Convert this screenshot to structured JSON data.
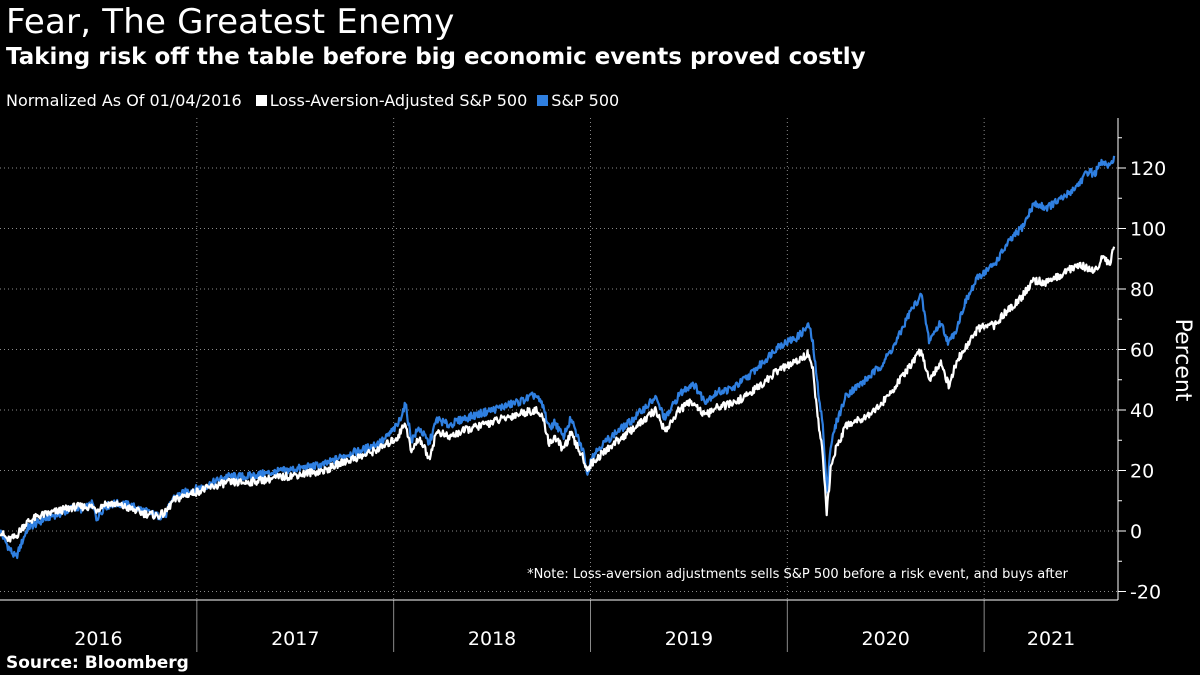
{
  "chart_data": {
    "type": "line",
    "title": "Fear, The Greatest Enemy",
    "subtitle": "Taking risk off the table before big economic events proved costly",
    "legend_note": "Normalized As Of 01/04/2016",
    "ylabel": "Percent",
    "xlabel": "",
    "ylim": [
      -20,
      135
    ],
    "xlim": [
      2016.0,
      2021.68
    ],
    "y_ticks": [
      "-20",
      "0",
      "20",
      "40",
      "60",
      "80",
      "100",
      "120"
    ],
    "x_labels": [
      "2016",
      "2017",
      "2018",
      "2019",
      "2020",
      "2021"
    ],
    "grid": true,
    "annotation": "*Note: Loss-aversion adjustments sells S&P 500 before a risk event, and buys after",
    "source": "Source:  Bloomberg",
    "series": [
      {
        "name": "S&P 500",
        "color": "#2f7fe0",
        "points": [
          [
            2016.0,
            0
          ],
          [
            2016.04,
            -5
          ],
          [
            2016.08,
            -9
          ],
          [
            2016.11,
            -4
          ],
          [
            2016.14,
            1
          ],
          [
            2016.2,
            3
          ],
          [
            2016.26,
            5
          ],
          [
            2016.32,
            6
          ],
          [
            2016.38,
            8
          ],
          [
            2016.42,
            7
          ],
          [
            2016.47,
            9
          ],
          [
            2016.49,
            4
          ],
          [
            2016.53,
            8
          ],
          [
            2016.58,
            9
          ],
          [
            2016.63,
            9
          ],
          [
            2016.68,
            8
          ],
          [
            2016.72,
            7
          ],
          [
            2016.8,
            5
          ],
          [
            2016.84,
            5
          ],
          [
            2016.88,
            11
          ],
          [
            2016.95,
            13
          ],
          [
            2017.05,
            15
          ],
          [
            2017.15,
            18
          ],
          [
            2017.25,
            18
          ],
          [
            2017.35,
            19
          ],
          [
            2017.45,
            20
          ],
          [
            2017.55,
            21
          ],
          [
            2017.65,
            22
          ],
          [
            2017.75,
            25
          ],
          [
            2017.85,
            27
          ],
          [
            2017.95,
            30
          ],
          [
            2018.02,
            35
          ],
          [
            2018.06,
            42
          ],
          [
            2018.09,
            30
          ],
          [
            2018.13,
            34
          ],
          [
            2018.18,
            29
          ],
          [
            2018.22,
            37
          ],
          [
            2018.28,
            35
          ],
          [
            2018.35,
            37
          ],
          [
            2018.45,
            39
          ],
          [
            2018.55,
            41
          ],
          [
            2018.65,
            43
          ],
          [
            2018.72,
            45
          ],
          [
            2018.76,
            41
          ],
          [
            2018.79,
            34
          ],
          [
            2018.82,
            36
          ],
          [
            2018.86,
            31
          ],
          [
            2018.9,
            37
          ],
          [
            2018.94,
            30
          ],
          [
            2018.97,
            25
          ],
          [
            2018.985,
            18
          ],
          [
            2019.0,
            24
          ],
          [
            2019.05,
            28
          ],
          [
            2019.12,
            32
          ],
          [
            2019.2,
            36
          ],
          [
            2019.28,
            41
          ],
          [
            2019.33,
            44
          ],
          [
            2019.38,
            37
          ],
          [
            2019.45,
            45
          ],
          [
            2019.52,
            49
          ],
          [
            2019.58,
            43
          ],
          [
            2019.65,
            46
          ],
          [
            2019.72,
            47
          ],
          [
            2019.8,
            51
          ],
          [
            2019.88,
            56
          ],
          [
            2019.95,
            61
          ],
          [
            2020.05,
            64
          ],
          [
            2020.11,
            68
          ],
          [
            2020.13,
            62
          ],
          [
            2020.15,
            50
          ],
          [
            2020.18,
            35
          ],
          [
            2020.2,
            13
          ],
          [
            2020.22,
            28
          ],
          [
            2020.25,
            36
          ],
          [
            2020.3,
            45
          ],
          [
            2020.4,
            50
          ],
          [
            2020.48,
            55
          ],
          [
            2020.55,
            62
          ],
          [
            2020.62,
            72
          ],
          [
            2020.68,
            78
          ],
          [
            2020.72,
            63
          ],
          [
            2020.78,
            69
          ],
          [
            2020.82,
            62
          ],
          [
            2020.86,
            67
          ],
          [
            2020.9,
            75
          ],
          [
            2020.97,
            84
          ],
          [
            2021.05,
            88
          ],
          [
            2021.12,
            95
          ],
          [
            2021.2,
            101
          ],
          [
            2021.25,
            108
          ],
          [
            2021.32,
            107
          ],
          [
            2021.4,
            110
          ],
          [
            2021.47,
            114
          ],
          [
            2021.53,
            119
          ],
          [
            2021.56,
            118
          ],
          [
            2021.6,
            122
          ],
          [
            2021.64,
            120
          ],
          [
            2021.66,
            124
          ]
        ]
      },
      {
        "name": "Loss-Aversion-Adjusted S&P 500",
        "color": "#ffffff",
        "points": [
          [
            2016.0,
            0
          ],
          [
            2016.04,
            -3
          ],
          [
            2016.08,
            -2
          ],
          [
            2016.11,
            1
          ],
          [
            2016.14,
            3
          ],
          [
            2016.2,
            5
          ],
          [
            2016.26,
            6
          ],
          [
            2016.32,
            7
          ],
          [
            2016.38,
            8
          ],
          [
            2016.42,
            8
          ],
          [
            2016.47,
            8
          ],
          [
            2016.49,
            7
          ],
          [
            2016.53,
            9
          ],
          [
            2016.58,
            9
          ],
          [
            2016.63,
            8
          ],
          [
            2016.68,
            7
          ],
          [
            2016.72,
            6
          ],
          [
            2016.8,
            5
          ],
          [
            2016.84,
            6
          ],
          [
            2016.88,
            10
          ],
          [
            2016.95,
            12
          ],
          [
            2017.05,
            14
          ],
          [
            2017.15,
            16
          ],
          [
            2017.25,
            16
          ],
          [
            2017.35,
            17
          ],
          [
            2017.45,
            18
          ],
          [
            2017.55,
            19
          ],
          [
            2017.65,
            20
          ],
          [
            2017.75,
            23
          ],
          [
            2017.85,
            25
          ],
          [
            2017.95,
            28
          ],
          [
            2018.02,
            31
          ],
          [
            2018.06,
            36
          ],
          [
            2018.09,
            26
          ],
          [
            2018.13,
            31
          ],
          [
            2018.18,
            24
          ],
          [
            2018.22,
            33
          ],
          [
            2018.28,
            31
          ],
          [
            2018.35,
            33
          ],
          [
            2018.45,
            35
          ],
          [
            2018.55,
            37
          ],
          [
            2018.65,
            39
          ],
          [
            2018.72,
            40
          ],
          [
            2018.76,
            37
          ],
          [
            2018.79,
            29
          ],
          [
            2018.82,
            31
          ],
          [
            2018.86,
            27
          ],
          [
            2018.9,
            32
          ],
          [
            2018.94,
            27
          ],
          [
            2018.97,
            23
          ],
          [
            2018.985,
            20
          ],
          [
            2019.0,
            22
          ],
          [
            2019.05,
            25
          ],
          [
            2019.12,
            29
          ],
          [
            2019.2,
            33
          ],
          [
            2019.28,
            37
          ],
          [
            2019.33,
            40
          ],
          [
            2019.38,
            33
          ],
          [
            2019.45,
            40
          ],
          [
            2019.52,
            43
          ],
          [
            2019.58,
            38
          ],
          [
            2019.65,
            41
          ],
          [
            2019.72,
            42
          ],
          [
            2019.8,
            45
          ],
          [
            2019.88,
            49
          ],
          [
            2019.95,
            53
          ],
          [
            2020.05,
            56
          ],
          [
            2020.11,
            59
          ],
          [
            2020.13,
            53
          ],
          [
            2020.15,
            40
          ],
          [
            2020.18,
            25
          ],
          [
            2020.2,
            6
          ],
          [
            2020.22,
            20
          ],
          [
            2020.25,
            28
          ],
          [
            2020.3,
            35
          ],
          [
            2020.4,
            38
          ],
          [
            2020.48,
            42
          ],
          [
            2020.55,
            48
          ],
          [
            2020.62,
            54
          ],
          [
            2020.68,
            60
          ],
          [
            2020.72,
            50
          ],
          [
            2020.78,
            56
          ],
          [
            2020.82,
            48
          ],
          [
            2020.86,
            56
          ],
          [
            2020.9,
            60
          ],
          [
            2020.97,
            67
          ],
          [
            2021.05,
            68
          ],
          [
            2021.12,
            73
          ],
          [
            2021.2,
            78
          ],
          [
            2021.25,
            83
          ],
          [
            2021.32,
            82
          ],
          [
            2021.4,
            85
          ],
          [
            2021.47,
            88
          ],
          [
            2021.53,
            87
          ],
          [
            2021.56,
            86
          ],
          [
            2021.6,
            90
          ],
          [
            2021.64,
            89
          ],
          [
            2021.66,
            94
          ]
        ]
      }
    ]
  }
}
